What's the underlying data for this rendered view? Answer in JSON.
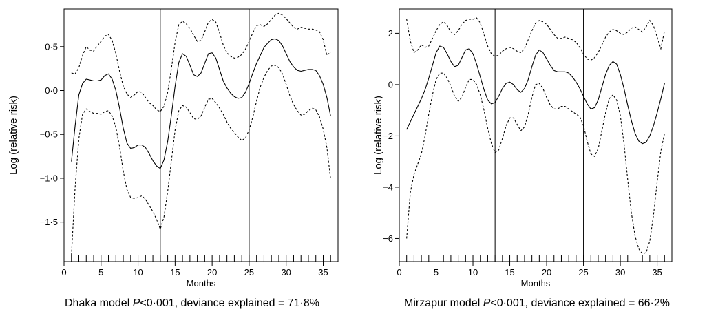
{
  "chart_data": [
    {
      "type": "line",
      "xlabel": "Months",
      "ylabel": "Log (relative risk)",
      "xlim": [
        0,
        37
      ],
      "ylim": [
        -1.95,
        0.93
      ],
      "xticks": [
        0,
        5,
        10,
        15,
        20,
        25,
        30,
        35
      ],
      "xtick_labels": [
        "0",
        "5",
        "10",
        "15",
        "20",
        "25",
        "30",
        "35"
      ],
      "yticks": [
        0.5,
        0.0,
        -0.5,
        -1.0,
        -1.5
      ],
      "ytick_labels": [
        "0·5",
        "0·0",
        "−0·5",
        "−1·0",
        "−1·5"
      ],
      "vlines": [
        13,
        25
      ],
      "rug": [
        1,
        2,
        3,
        4,
        5,
        6,
        7,
        8,
        9,
        10,
        11,
        12,
        13,
        14,
        15,
        16,
        17,
        18,
        19,
        20,
        21,
        22,
        23,
        24,
        25,
        26,
        27,
        28,
        29,
        30,
        31,
        32,
        33,
        34,
        35,
        36
      ],
      "caption": {
        "prefix": "Dhaka model ",
        "p": "P",
        "suffix": "<0·001, deviance explained = 71·8%"
      },
      "series": [
        {
          "style": "dashed",
          "x": [
            1,
            1.5,
            2,
            2.5,
            3,
            3.5,
            4,
            4.5,
            5,
            5.5,
            6,
            6.5,
            7,
            7.5,
            8,
            8.5,
            9,
            9.5,
            10,
            10.5,
            11,
            11.5,
            12,
            12.5,
            13,
            13.5,
            14,
            14.5,
            15,
            15.5,
            16,
            16.5,
            17,
            17.5,
            18,
            18.5,
            19,
            19.5,
            20,
            20.5,
            21,
            21.5,
            22,
            22.5,
            23,
            23.5,
            24,
            24.5,
            25,
            25.5,
            26,
            26.5,
            27,
            27.5,
            28,
            28.5,
            29,
            29.5,
            30,
            30.5,
            31,
            31.5,
            32,
            32.5,
            33,
            33.5,
            34,
            34.5,
            35,
            35.5,
            36
          ],
          "y": [
            0.2,
            0.19,
            0.26,
            0.4,
            0.5,
            0.46,
            0.45,
            0.51,
            0.56,
            0.62,
            0.64,
            0.57,
            0.42,
            0.22,
            0.05,
            -0.04,
            -0.08,
            -0.05,
            -0.01,
            -0.02,
            -0.08,
            -0.14,
            -0.17,
            -0.22,
            -0.24,
            -0.18,
            -0.02,
            0.25,
            0.55,
            0.75,
            0.79,
            0.76,
            0.71,
            0.63,
            0.56,
            0.57,
            0.67,
            0.78,
            0.81,
            0.78,
            0.66,
            0.52,
            0.43,
            0.39,
            0.37,
            0.38,
            0.41,
            0.47,
            0.56,
            0.66,
            0.74,
            0.75,
            0.73,
            0.76,
            0.81,
            0.86,
            0.88,
            0.86,
            0.82,
            0.77,
            0.72,
            0.7,
            0.72,
            0.71,
            0.7,
            0.7,
            0.69,
            0.67,
            0.58,
            0.4,
            0.44
          ]
        },
        {
          "style": "solid",
          "x": [
            1,
            1.5,
            2,
            2.5,
            3,
            3.5,
            4,
            4.5,
            5,
            5.5,
            6,
            6.5,
            7,
            7.5,
            8,
            8.5,
            9,
            9.5,
            10,
            10.5,
            11,
            11.5,
            12,
            12.5,
            13,
            13.5,
            14,
            14.5,
            15,
            15.5,
            16,
            16.5,
            17,
            17.5,
            18,
            18.5,
            19,
            19.5,
            20,
            20.5,
            21,
            21.5,
            22,
            22.5,
            23,
            23.5,
            24,
            24.5,
            25,
            25.5,
            26,
            26.5,
            27,
            27.5,
            28,
            28.5,
            29,
            29.5,
            30,
            30.5,
            31,
            31.5,
            32,
            32.5,
            33,
            33.5,
            34,
            34.5,
            35,
            35.5,
            36
          ],
          "y": [
            -0.81,
            -0.4,
            -0.05,
            0.08,
            0.13,
            0.12,
            0.11,
            0.11,
            0.12,
            0.17,
            0.19,
            0.13,
            0.0,
            -0.2,
            -0.43,
            -0.6,
            -0.66,
            -0.65,
            -0.62,
            -0.62,
            -0.65,
            -0.72,
            -0.8,
            -0.86,
            -0.89,
            -0.79,
            -0.58,
            -0.28,
            0.05,
            0.32,
            0.42,
            0.39,
            0.29,
            0.18,
            0.16,
            0.2,
            0.31,
            0.42,
            0.43,
            0.37,
            0.24,
            0.11,
            0.03,
            -0.03,
            -0.07,
            -0.09,
            -0.08,
            -0.02,
            0.08,
            0.2,
            0.31,
            0.4,
            0.49,
            0.54,
            0.58,
            0.59,
            0.57,
            0.51,
            0.42,
            0.33,
            0.27,
            0.23,
            0.22,
            0.23,
            0.24,
            0.24,
            0.23,
            0.17,
            0.07,
            -0.08,
            -0.29
          ]
        },
        {
          "style": "dashed",
          "x": [
            1,
            1.5,
            2,
            2.5,
            3,
            3.5,
            4,
            4.5,
            5,
            5.5,
            6,
            6.5,
            7,
            7.5,
            8,
            8.5,
            9,
            9.5,
            10,
            10.5,
            11,
            11.5,
            12,
            12.5,
            13,
            13.5,
            14,
            14.5,
            15,
            15.5,
            16,
            16.5,
            17,
            17.5,
            18,
            18.5,
            19,
            19.5,
            20,
            20.5,
            21,
            21.5,
            22,
            22.5,
            23,
            23.5,
            24,
            24.5,
            25,
            25.5,
            26,
            26.5,
            27,
            27.5,
            28,
            28.5,
            29,
            29.5,
            30,
            30.5,
            31,
            31.5,
            32,
            32.5,
            33,
            33.5,
            34,
            34.5,
            35,
            35.5,
            36
          ],
          "y": [
            -1.88,
            -1.1,
            -0.55,
            -0.27,
            -0.21,
            -0.24,
            -0.26,
            -0.26,
            -0.27,
            -0.24,
            -0.23,
            -0.29,
            -0.42,
            -0.64,
            -0.92,
            -1.13,
            -1.22,
            -1.23,
            -1.22,
            -1.2,
            -1.24,
            -1.31,
            -1.38,
            -1.47,
            -1.58,
            -1.44,
            -1.15,
            -0.8,
            -0.45,
            -0.23,
            -0.17,
            -0.19,
            -0.25,
            -0.32,
            -0.33,
            -0.29,
            -0.19,
            -0.1,
            -0.09,
            -0.14,
            -0.2,
            -0.27,
            -0.36,
            -0.43,
            -0.48,
            -0.53,
            -0.57,
            -0.54,
            -0.45,
            -0.3,
            -0.12,
            0.04,
            0.15,
            0.23,
            0.28,
            0.29,
            0.26,
            0.19,
            0.07,
            -0.06,
            -0.16,
            -0.23,
            -0.28,
            -0.27,
            -0.23,
            -0.2,
            -0.22,
            -0.3,
            -0.44,
            -0.65,
            -1.01
          ]
        }
      ]
    },
    {
      "type": "line",
      "xlabel": "Months",
      "ylabel": "Log (relative risk)",
      "xlim": [
        0,
        37
      ],
      "ylim": [
        -6.9,
        2.95
      ],
      "xticks": [
        0,
        5,
        10,
        15,
        20,
        25,
        30,
        35
      ],
      "xtick_labels": [
        "0",
        "5",
        "10",
        "15",
        "20",
        "25",
        "30",
        "35"
      ],
      "yticks": [
        2,
        0,
        -2,
        -4,
        -6
      ],
      "ytick_labels": [
        "2",
        "0",
        "−2",
        "−4",
        "−6"
      ],
      "vlines": [
        13,
        25
      ],
      "rug": [
        1,
        2,
        3,
        4,
        5,
        6,
        7,
        8,
        9,
        10,
        11,
        12,
        13,
        14,
        15,
        16,
        17,
        18,
        19,
        20,
        21,
        22,
        23,
        24,
        25,
        26,
        27,
        28,
        29,
        30,
        31,
        32,
        33,
        34,
        35,
        36
      ],
      "caption": {
        "prefix": "Mirzapur model ",
        "p": "P",
        "suffix": "<0·001, deviance explained = 66·2%"
      },
      "series": [
        {
          "style": "dashed",
          "x": [
            1,
            1.5,
            2,
            2.5,
            3,
            3.5,
            4,
            4.5,
            5,
            5.5,
            6,
            6.5,
            7,
            7.5,
            8,
            8.5,
            9,
            9.5,
            10,
            10.5,
            11,
            11.5,
            12,
            12.5,
            13,
            13.5,
            14,
            14.5,
            15,
            15.5,
            16,
            16.5,
            17,
            17.5,
            18,
            18.5,
            19,
            19.5,
            20,
            20.5,
            21,
            21.5,
            22,
            22.5,
            23,
            23.5,
            24,
            24.5,
            25,
            25.5,
            26,
            26.5,
            27,
            27.5,
            28,
            28.5,
            29,
            29.5,
            30,
            30.5,
            31,
            31.5,
            32,
            32.5,
            33,
            33.5,
            34,
            34.5,
            35,
            35.5,
            36
          ],
          "y": [
            2.55,
            1.7,
            1.25,
            1.35,
            1.55,
            1.45,
            1.5,
            1.8,
            2.1,
            2.35,
            2.45,
            2.3,
            2.05,
            1.95,
            2.1,
            2.35,
            2.5,
            2.55,
            2.55,
            2.6,
            2.4,
            1.95,
            1.5,
            1.2,
            1.1,
            1.15,
            1.3,
            1.4,
            1.45,
            1.4,
            1.3,
            1.25,
            1.4,
            1.75,
            2.1,
            2.4,
            2.5,
            2.45,
            2.35,
            2.15,
            1.95,
            1.8,
            1.8,
            1.85,
            1.8,
            1.75,
            1.65,
            1.45,
            1.2,
            1.0,
            0.95,
            1.05,
            1.25,
            1.55,
            1.85,
            2.05,
            2.15,
            2.1,
            2.0,
            1.95,
            2.05,
            2.2,
            2.25,
            2.15,
            2.05,
            2.25,
            2.5,
            2.3,
            1.85,
            1.4,
            2.1
          ]
        },
        {
          "style": "solid",
          "x": [
            1,
            1.5,
            2,
            2.5,
            3,
            3.5,
            4,
            4.5,
            5,
            5.5,
            6,
            6.5,
            7,
            7.5,
            8,
            8.5,
            9,
            9.5,
            10,
            10.5,
            11,
            11.5,
            12,
            12.5,
            13,
            13.5,
            14,
            14.5,
            15,
            15.5,
            16,
            16.5,
            17,
            17.5,
            18,
            18.5,
            19,
            19.5,
            20,
            20.5,
            21,
            21.5,
            22,
            22.5,
            23,
            23.5,
            24,
            24.5,
            25,
            25.5,
            26,
            26.5,
            27,
            27.5,
            28,
            28.5,
            29,
            29.5,
            30,
            30.5,
            31,
            31.5,
            32,
            32.5,
            33,
            33.5,
            34,
            34.5,
            35,
            35.5,
            36
          ],
          "y": [
            -1.75,
            -1.45,
            -1.15,
            -0.85,
            -0.55,
            -0.2,
            0.25,
            0.75,
            1.25,
            1.5,
            1.45,
            1.2,
            0.9,
            0.7,
            0.75,
            1.05,
            1.35,
            1.4,
            1.2,
            0.8,
            0.3,
            -0.2,
            -0.6,
            -0.75,
            -0.7,
            -0.45,
            -0.15,
            0.05,
            0.1,
            0.0,
            -0.2,
            -0.3,
            -0.15,
            0.2,
            0.7,
            1.15,
            1.35,
            1.25,
            1.0,
            0.75,
            0.55,
            0.5,
            0.5,
            0.5,
            0.45,
            0.3,
            0.1,
            -0.15,
            -0.45,
            -0.75,
            -0.95,
            -0.9,
            -0.6,
            -0.1,
            0.4,
            0.75,
            0.9,
            0.8,
            0.4,
            -0.15,
            -0.8,
            -1.4,
            -1.9,
            -2.2,
            -2.3,
            -2.25,
            -2.0,
            -1.6,
            -1.1,
            -0.55,
            0.05
          ]
        },
        {
          "style": "dashed",
          "x": [
            1,
            1.5,
            2,
            2.5,
            3,
            3.5,
            4,
            4.5,
            5,
            5.5,
            6,
            6.5,
            7,
            7.5,
            8,
            8.5,
            9,
            9.5,
            10,
            10.5,
            11,
            11.5,
            12,
            12.5,
            13,
            13.5,
            14,
            14.5,
            15,
            15.5,
            16,
            16.5,
            17,
            17.5,
            18,
            18.5,
            19,
            19.5,
            20,
            20.5,
            21,
            21.5,
            22,
            22.5,
            23,
            23.5,
            24,
            24.5,
            25,
            25.5,
            26,
            26.5,
            27,
            27.5,
            28,
            28.5,
            29,
            29.5,
            30,
            30.5,
            31,
            31.5,
            32,
            32.5,
            33,
            33.5,
            34,
            34.5,
            35,
            35.5,
            36
          ],
          "y": [
            -6.0,
            -4.2,
            -3.5,
            -3.1,
            -2.7,
            -2.0,
            -1.15,
            -0.4,
            0.2,
            0.45,
            0.45,
            0.25,
            -0.05,
            -0.45,
            -0.65,
            -0.5,
            -0.1,
            0.2,
            0.2,
            0.0,
            -0.4,
            -1.0,
            -1.7,
            -2.3,
            -2.65,
            -2.55,
            -2.1,
            -1.6,
            -1.3,
            -1.3,
            -1.55,
            -1.8,
            -1.65,
            -1.15,
            -0.5,
            0.0,
            0.05,
            -0.15,
            -0.5,
            -0.8,
            -0.95,
            -0.95,
            -0.85,
            -0.85,
            -0.95,
            -1.05,
            -1.15,
            -1.25,
            -1.6,
            -2.2,
            -2.7,
            -2.8,
            -2.5,
            -1.8,
            -1.1,
            -0.55,
            -0.4,
            -0.6,
            -1.2,
            -2.3,
            -3.7,
            -5.0,
            -5.9,
            -6.4,
            -6.6,
            -6.55,
            -6.1,
            -5.1,
            -3.8,
            -2.6,
            -1.9
          ]
        }
      ]
    }
  ]
}
